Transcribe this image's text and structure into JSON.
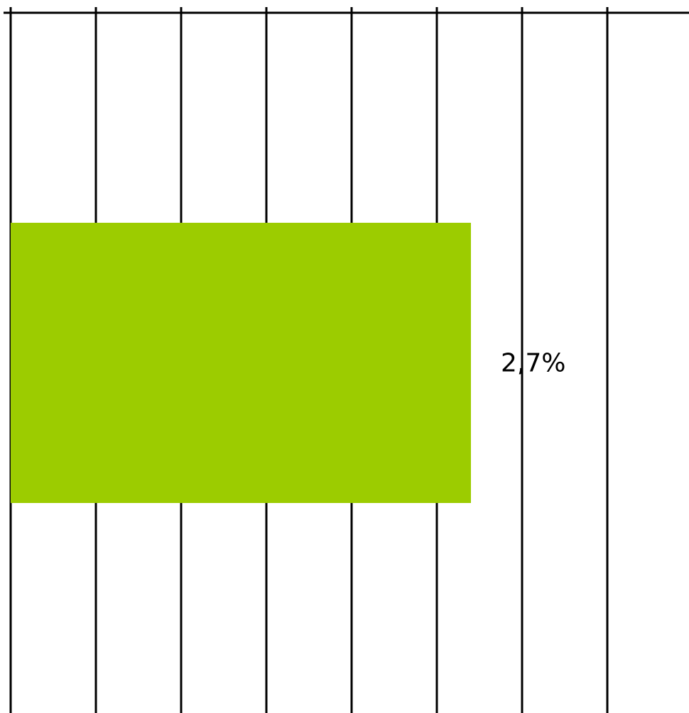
{
  "chart_data": {
    "type": "bar",
    "orientation": "horizontal",
    "categories": [
      ""
    ],
    "values": [
      2.7
    ],
    "data_labels": [
      "2,7%"
    ],
    "title": "",
    "xlabel": "",
    "ylabel": "",
    "xlim": [
      0,
      4
    ],
    "x_major_step": 0.5,
    "grid": true,
    "colors": {
      "bar": "#9ccc00",
      "grid": "#000000",
      "axis": "#000000",
      "label": "#000000"
    }
  }
}
